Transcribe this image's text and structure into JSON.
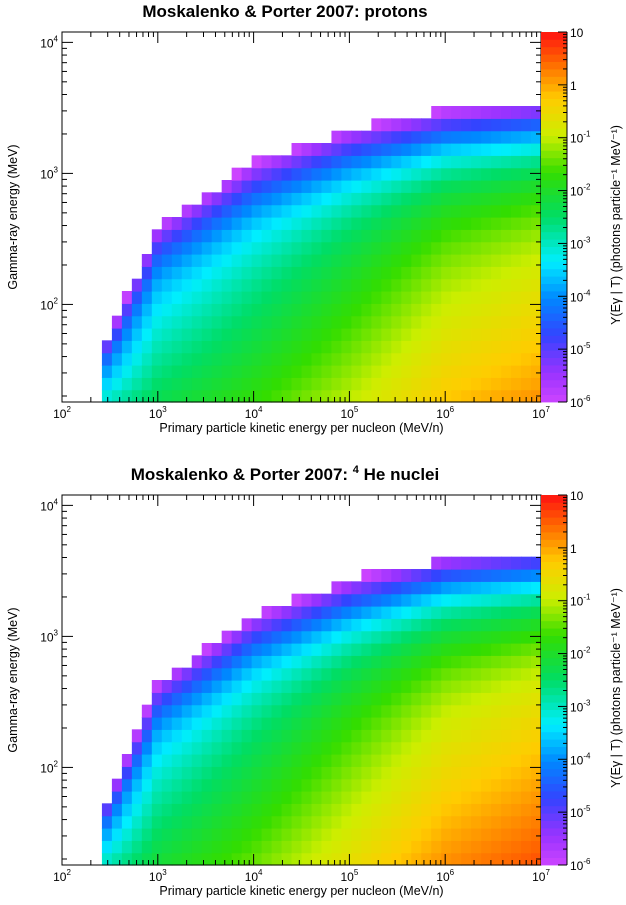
{
  "chart_data": [
    {
      "type": "heatmap",
      "title": "Moskalenko & Porter 2007: protons",
      "title_superscript": "",
      "xlabel": "Primary particle kinetic energy per nucleon (MeV/n)",
      "ylabel": "Gamma-ray energy (MeV)",
      "zlabel": "Y(Eγ | T) (photons particle⁻¹ MeV⁻¹)",
      "xscale": "log",
      "yscale": "log",
      "zscale": "log",
      "xlim": [
        100,
        10000000
      ],
      "ylim": [
        18,
        12000
      ],
      "zlim": [
        1e-06,
        10
      ],
      "x_ticks": [
        {
          "base": "10",
          "exp": "2"
        },
        {
          "base": "10",
          "exp": "3"
        },
        {
          "base": "10",
          "exp": "4"
        },
        {
          "base": "10",
          "exp": "5"
        },
        {
          "base": "10",
          "exp": "6"
        },
        {
          "base": "10",
          "exp": "7"
        }
      ],
      "y_ticks": [
        {
          "base": "10",
          "exp": "2"
        },
        {
          "base": "10",
          "exp": "3"
        },
        {
          "base": "10",
          "exp": "4"
        }
      ],
      "z_ticks": [
        {
          "base": "10",
          "exp": "-6"
        },
        {
          "base": "10",
          "exp": "-5"
        },
        {
          "base": "10",
          "exp": "-4"
        },
        {
          "base": "10",
          "exp": "-3"
        },
        {
          "base": "10",
          "exp": "-2"
        },
        {
          "base": "10",
          "exp": "-1"
        },
        {
          "base": "1",
          "exp": ""
        },
        {
          "base": "10",
          "exp": ""
        }
      ],
      "threshold_T_MeV": 280,
      "yield_at_Ymin": {
        "near_threshold": 0.001,
        "T_1e3": 0.005,
        "T_1e4": 0.02,
        "T_1e5": 0.1,
        "T_1e6": 0.6,
        "T_1e7": 1.5
      },
      "kinematic_cutoff_Egamma_MeV": {
        "T_3e2": 70,
        "T_1e3": 600,
        "T_1e4": 1700,
        "T_1e5": 2600,
        "T_1e6": 3100,
        "T_1e7": 3200
      },
      "grid": false,
      "color_palette": "rainbow (violet to red)"
    },
    {
      "type": "heatmap",
      "title": "Moskalenko & Porter 2007: ",
      "title_superscript": "4",
      "title_suffix": " He nuclei",
      "xlabel": "Primary particle kinetic energy per nucleon (MeV/n)",
      "ylabel": "Gamma-ray energy (MeV)",
      "zlabel": "Y(Eγ | T) (photons particle⁻¹ MeV⁻¹)",
      "xscale": "log",
      "yscale": "log",
      "zscale": "log",
      "xlim": [
        100,
        10000000
      ],
      "ylim": [
        18,
        12000
      ],
      "zlim": [
        1e-06,
        10
      ],
      "x_ticks": [
        {
          "base": "10",
          "exp": "2"
        },
        {
          "base": "10",
          "exp": "3"
        },
        {
          "base": "10",
          "exp": "4"
        },
        {
          "base": "10",
          "exp": "5"
        },
        {
          "base": "10",
          "exp": "6"
        },
        {
          "base": "10",
          "exp": "7"
        }
      ],
      "y_ticks": [
        {
          "base": "10",
          "exp": "2"
        },
        {
          "base": "10",
          "exp": "3"
        },
        {
          "base": "10",
          "exp": "4"
        }
      ],
      "z_ticks": [
        {
          "base": "10",
          "exp": "-6"
        },
        {
          "base": "10",
          "exp": "-5"
        },
        {
          "base": "10",
          "exp": "-4"
        },
        {
          "base": "10",
          "exp": "-3"
        },
        {
          "base": "10",
          "exp": "-2"
        },
        {
          "base": "10",
          "exp": "-1"
        },
        {
          "base": "1",
          "exp": ""
        },
        {
          "base": "10",
          "exp": ""
        }
      ],
      "threshold_T_MeV": 250,
      "yield_at_Ymin": {
        "near_threshold": 0.001,
        "T_1e3": 0.008,
        "T_1e4": 0.04,
        "T_1e5": 0.25,
        "T_1e6": 1.5,
        "T_1e7": 4
      },
      "kinematic_cutoff_Egamma_MeV": {
        "T_3e2": 70,
        "T_1e3": 650,
        "T_1e4": 1900,
        "T_1e5": 3000,
        "T_1e6": 3800,
        "T_1e7": 4000
      },
      "grid": false,
      "color_palette": "rainbow (violet to red)"
    }
  ]
}
